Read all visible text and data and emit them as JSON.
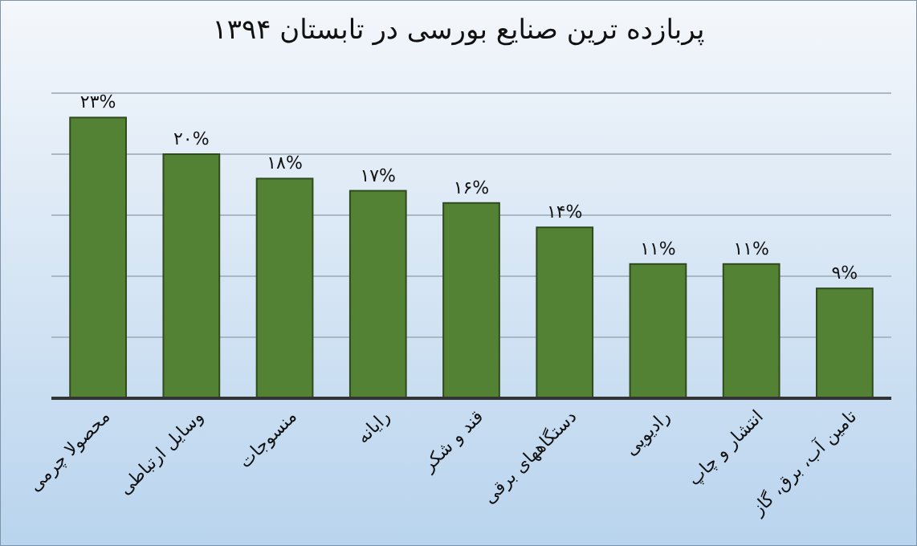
{
  "chart_data": {
    "type": "bar",
    "title": "پربازده ترین صنایع بورسی در  تابستان ۱۳۹۴",
    "categories": [
      "محصولا چرمی",
      "وسایل ارتباطی",
      "منسوجات",
      "رایانه",
      "قند و شکر",
      "دستگاههای برقی",
      "رادیویی",
      "انتشار و چاپ",
      "تامین آب، برق، گاز"
    ],
    "values": [
      23,
      20,
      18,
      17,
      16,
      14,
      11,
      11,
      9
    ],
    "value_labels": [
      "۲۳%",
      "۲۰%",
      "۱۸%",
      "۱۷%",
      "۱۶%",
      "۱۴%",
      "۱۱%",
      "۱۱%",
      "۹%"
    ],
    "color": "#548235",
    "ylim": [
      0,
      25
    ],
    "yticks": [
      {
        "value": 0,
        "label": null
      },
      {
        "value": 5,
        "label": null
      },
      {
        "value": 10,
        "label": null
      },
      {
        "value": 15,
        "label": null
      },
      {
        "value": 20,
        "label": null
      },
      {
        "value": 25,
        "label": null
      }
    ],
    "grid": "y",
    "tick_labels": "x"
  }
}
